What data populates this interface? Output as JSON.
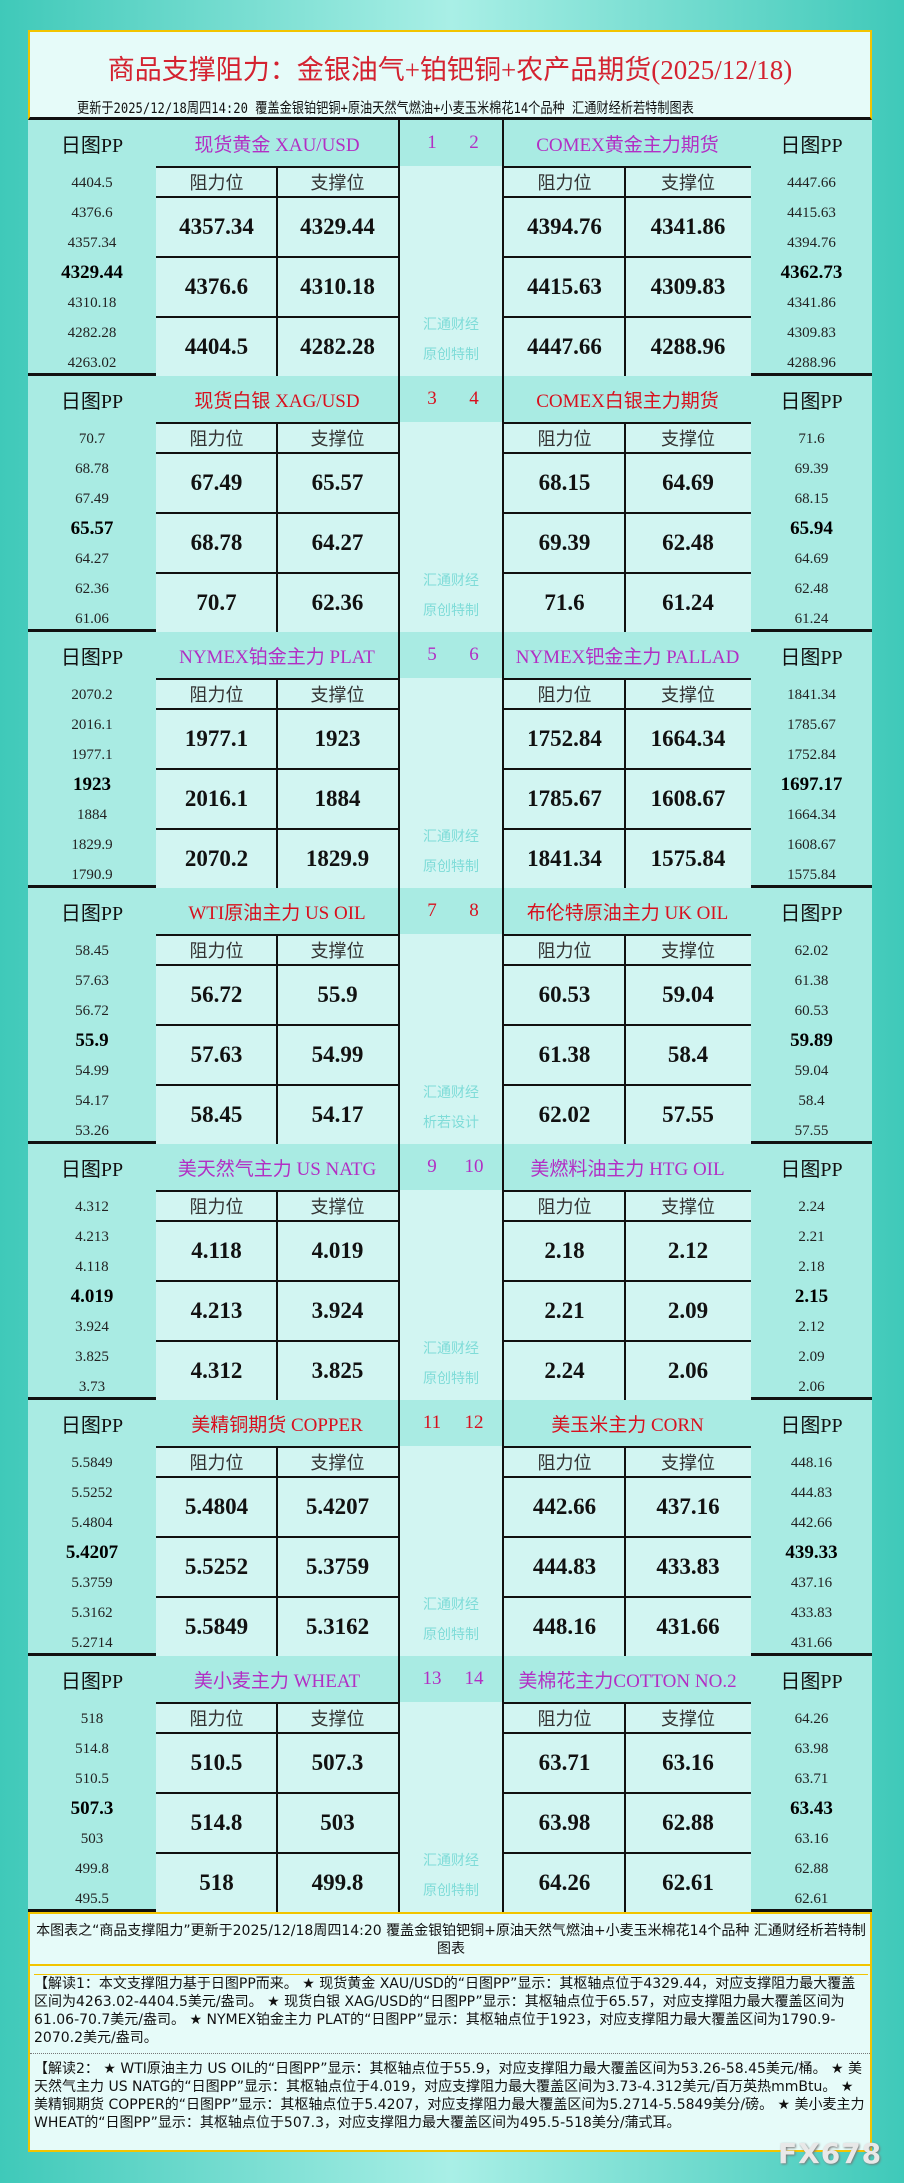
{
  "header": {
    "title": "商品支撑阻力：金银油气+铂钯铜+农产品期货(2025/12/18)",
    "subtitle": "更新于2025/12/18周四14:20 覆盖金银铂钯铜+原油天然气燃油+小麦玉米棉花14个品种 汇通财经析若特制图表"
  },
  "labels": {
    "pp": "日图PP",
    "resistance": "阻力位",
    "support": "支撑位"
  },
  "colors": {
    "purple": "#b22fc4",
    "red": "#d8101e",
    "watermark": "#7fdcd8",
    "title": "#d42230"
  },
  "blocks": [
    {
      "color": "#b22fc4",
      "numbers": [
        "1",
        "2"
      ],
      "watermark": [
        "汇通财经",
        "原创特制"
      ],
      "left": {
        "name": "现货黄金 XAU/USD",
        "pp": [
          "4404.5",
          "4376.6",
          "4357.34",
          "4329.44",
          "4310.18",
          "4282.28",
          "4263.02"
        ],
        "rows": [
          [
            "4357.34",
            "4329.44"
          ],
          [
            "4376.6",
            "4310.18"
          ],
          [
            "4404.5",
            "4282.28"
          ]
        ]
      },
      "right": {
        "name": "COMEX黄金主力期货",
        "pp": [
          "4447.66",
          "4415.63",
          "4394.76",
          "4362.73",
          "4341.86",
          "4309.83",
          "4288.96"
        ],
        "rows": [
          [
            "4394.76",
            "4341.86"
          ],
          [
            "4415.63",
            "4309.83"
          ],
          [
            "4447.66",
            "4288.96"
          ]
        ]
      }
    },
    {
      "color": "#d8101e",
      "numbers": [
        "3",
        "4"
      ],
      "watermark": [
        "汇通财经",
        "原创特制"
      ],
      "left": {
        "name": "现货白银 XAG/USD",
        "pp": [
          "70.7",
          "68.78",
          "67.49",
          "65.57",
          "64.27",
          "62.36",
          "61.06"
        ],
        "rows": [
          [
            "67.49",
            "65.57"
          ],
          [
            "68.78",
            "64.27"
          ],
          [
            "70.7",
            "62.36"
          ]
        ]
      },
      "right": {
        "name": "COMEX白银主力期货",
        "pp": [
          "71.6",
          "69.39",
          "68.15",
          "65.94",
          "64.69",
          "62.48",
          "61.24"
        ],
        "rows": [
          [
            "68.15",
            "64.69"
          ],
          [
            "69.39",
            "62.48"
          ],
          [
            "71.6",
            "61.24"
          ]
        ]
      }
    },
    {
      "color": "#b22fc4",
      "numbers": [
        "5",
        "6"
      ],
      "watermark": [
        "汇通财经",
        "原创特制"
      ],
      "left": {
        "name": "NYMEX铂金主力 PLAT",
        "pp": [
          "2070.2",
          "2016.1",
          "1977.1",
          "1923",
          "1884",
          "1829.9",
          "1790.9"
        ],
        "rows": [
          [
            "1977.1",
            "1923"
          ],
          [
            "2016.1",
            "1884"
          ],
          [
            "2070.2",
            "1829.9"
          ]
        ]
      },
      "right": {
        "name": "NYMEX钯金主力 PALLAD",
        "pp": [
          "1841.34",
          "1785.67",
          "1752.84",
          "1697.17",
          "1664.34",
          "1608.67",
          "1575.84"
        ],
        "rows": [
          [
            "1752.84",
            "1664.34"
          ],
          [
            "1785.67",
            "1608.67"
          ],
          [
            "1841.34",
            "1575.84"
          ]
        ]
      }
    },
    {
      "color": "#d8101e",
      "numbers": [
        "7",
        "8"
      ],
      "watermark": [
        "汇通财经",
        "析若设计"
      ],
      "left": {
        "name": "WTI原油主力 US OIL",
        "pp": [
          "58.45",
          "57.63",
          "56.72",
          "55.9",
          "54.99",
          "54.17",
          "53.26"
        ],
        "rows": [
          [
            "56.72",
            "55.9"
          ],
          [
            "57.63",
            "54.99"
          ],
          [
            "58.45",
            "54.17"
          ]
        ]
      },
      "right": {
        "name": "布伦特原油主力 UK OIL",
        "pp": [
          "62.02",
          "61.38",
          "60.53",
          "59.89",
          "59.04",
          "58.4",
          "57.55"
        ],
        "rows": [
          [
            "60.53",
            "59.04"
          ],
          [
            "61.38",
            "58.4"
          ],
          [
            "62.02",
            "57.55"
          ]
        ]
      }
    },
    {
      "color": "#b22fc4",
      "numbers": [
        "9",
        "10"
      ],
      "watermark": [
        "汇通财经",
        "原创特制"
      ],
      "left": {
        "name": "美天然气主力 US NATG",
        "pp": [
          "4.312",
          "4.213",
          "4.118",
          "4.019",
          "3.924",
          "3.825",
          "3.73"
        ],
        "rows": [
          [
            "4.118",
            "4.019"
          ],
          [
            "4.213",
            "3.924"
          ],
          [
            "4.312",
            "3.825"
          ]
        ]
      },
      "right": {
        "name": "美燃料油主力 HTG OIL",
        "pp": [
          "2.24",
          "2.21",
          "2.18",
          "2.15",
          "2.12",
          "2.09",
          "2.06"
        ],
        "rows": [
          [
            "2.18",
            "2.12"
          ],
          [
            "2.21",
            "2.09"
          ],
          [
            "2.24",
            "2.06"
          ]
        ]
      }
    },
    {
      "color": "#d8101e",
      "numbers": [
        "11",
        "12"
      ],
      "watermark": [
        "汇通财经",
        "原创特制"
      ],
      "left": {
        "name": "美精铜期货 COPPER",
        "pp": [
          "5.5849",
          "5.5252",
          "5.4804",
          "5.4207",
          "5.3759",
          "5.3162",
          "5.2714"
        ],
        "rows": [
          [
            "5.4804",
            "5.4207"
          ],
          [
            "5.5252",
            "5.3759"
          ],
          [
            "5.5849",
            "5.3162"
          ]
        ]
      },
      "right": {
        "name": "美玉米主力 CORN",
        "pp": [
          "448.16",
          "444.83",
          "442.66",
          "439.33",
          "437.16",
          "433.83",
          "431.66"
        ],
        "rows": [
          [
            "442.66",
            "437.16"
          ],
          [
            "444.83",
            "433.83"
          ],
          [
            "448.16",
            "431.66"
          ]
        ]
      }
    },
    {
      "color": "#b22fc4",
      "numbers": [
        "13",
        "14"
      ],
      "watermark": [
        "汇通财经",
        "原创特制"
      ],
      "left": {
        "name": "美小麦主力 WHEAT",
        "pp": [
          "518",
          "514.8",
          "510.5",
          "507.3",
          "503",
          "499.8",
          "495.5"
        ],
        "rows": [
          [
            "510.5",
            "507.3"
          ],
          [
            "514.8",
            "503"
          ],
          [
            "518",
            "499.8"
          ]
        ]
      },
      "right": {
        "name": "美棉花主力COTTON NO.2",
        "pp": [
          "64.26",
          "63.98",
          "63.71",
          "63.43",
          "63.16",
          "62.88",
          "62.61"
        ],
        "rows": [
          [
            "63.71",
            "63.16"
          ],
          [
            "63.98",
            "62.88"
          ],
          [
            "64.26",
            "62.61"
          ]
        ]
      }
    }
  ],
  "notes": {
    "summary": "本图表之“商品支撑阻力”更新于2025/12/18周四14:20 覆盖金银铂钯铜+原油天然气燃油+小麦玉米棉花14个品种 汇通财经析若特制图表",
    "interpretation1": "【解读1：本文支撑阻力基于日图PP而来。 ★ 现货黄金 XAU/USD的“日图PP”显示：其枢轴点位于4329.44，对应支撑阻力最大覆盖区间为4263.02-4404.5美元/盎司。 ★ 现货白银 XAG/USD的“日图PP”显示：其枢轴点位于65.57，对应支撑阻力最大覆盖区间为61.06-70.7美元/盎司。 ★ NYMEX铂金主力 PLAT的“日图PP”显示：其枢轴点位于1923，对应支撑阻力最大覆盖区间为1790.9-2070.2美元/盎司。",
    "interpretation2": "【解读2： ★ WTI原油主力 US OIL的“日图PP”显示：其枢轴点位于55.9，对应支撑阻力最大覆盖区间为53.26-58.45美元/桶。 ★ 美天然气主力 US NATG的“日图PP”显示：其枢轴点位于4.019，对应支撑阻力最大覆盖区间为3.73-4.312美元/百万英热mmBtu。 ★ 美精铜期货 COPPER的“日图PP”显示：其枢轴点位于5.4207，对应支撑阻力最大覆盖区间为5.2714-5.5849美分/磅。 ★ 美小麦主力 WHEAT的“日图PP”显示：其枢轴点位于507.3，对应支撑阻力最大覆盖区间为495.5-518美分/蒲式耳。"
  },
  "watermark_logo": "FX678"
}
